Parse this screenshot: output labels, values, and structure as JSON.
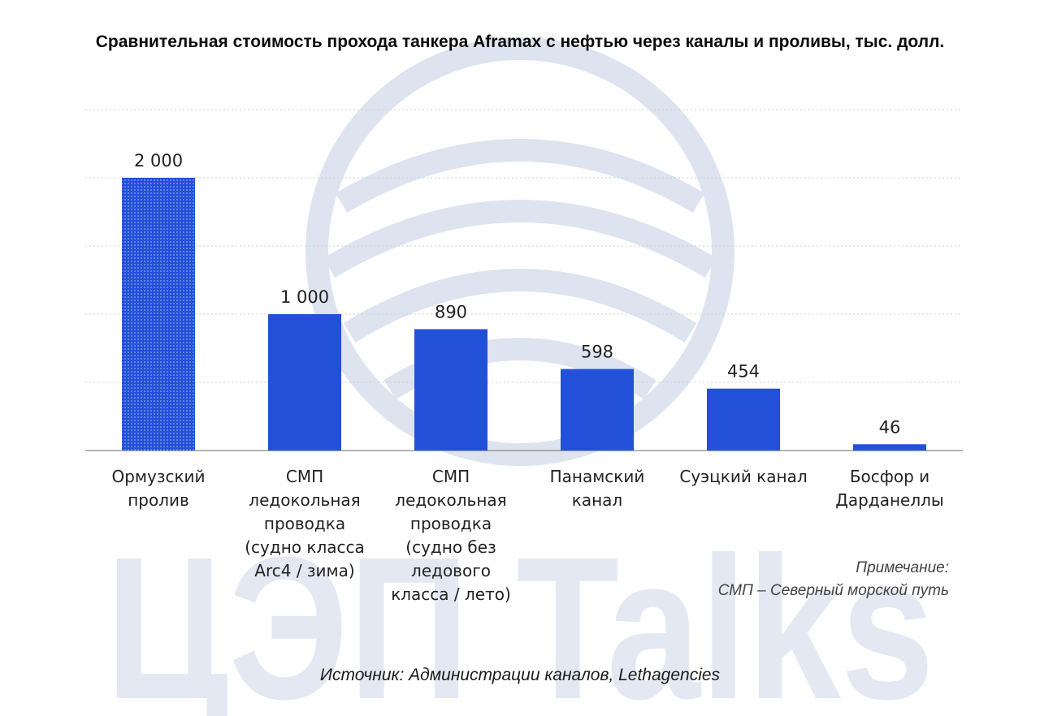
{
  "watermark": {
    "text": "ЦЭП Talks",
    "color": "#dbe2ef"
  },
  "note": {
    "heading": "Примечание:",
    "text": "СМП – Северный морской путь"
  },
  "source": "Источник: Администрации каналов, Lethagencies",
  "colors": {
    "bar": "#2250d8",
    "grid": "#cfcfcf",
    "axis": "#9a9a9a",
    "label": "#222222"
  },
  "chart_data": {
    "type": "bar",
    "title": "Сравнительная стоимость прохода танкера Aframax с нефтью через каналы и проливы, тыс. долл.",
    "xlabel": "",
    "ylabel": "",
    "ylim": [
      0,
      2500
    ],
    "grid": true,
    "categories": [
      [
        "Ормузский",
        "пролив"
      ],
      [
        "СМП",
        "ледокольная",
        "проводка",
        "(судно класса",
        "Arc4 / зима)"
      ],
      [
        "СМП",
        "ледокольная",
        "проводка",
        "(судно без",
        "ледового",
        "класса / лето)"
      ],
      [
        "Панамский",
        "канал"
      ],
      [
        "Суэцкий канал"
      ],
      [
        "Босфор и",
        "Дарданеллы"
      ]
    ],
    "values": [
      2000,
      1000,
      890,
      598,
      454,
      46
    ],
    "value_labels": [
      "2 000",
      "1 000",
      "890",
      "598",
      "454",
      "46"
    ],
    "patterned": [
      true,
      false,
      false,
      false,
      false,
      false
    ]
  }
}
